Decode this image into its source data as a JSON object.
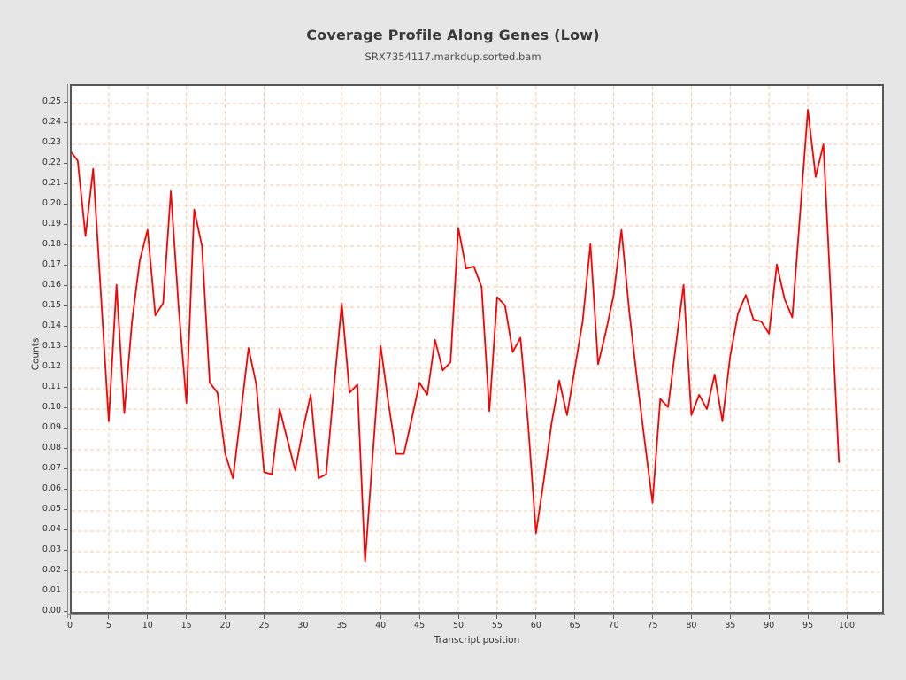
{
  "page": {
    "background": "#e6e6e6"
  },
  "header": {
    "title": "Coverage Profile Along Genes (Low)",
    "subtitle": "SRX7354117.markdup.sorted.bam"
  },
  "chart_data": {
    "type": "line",
    "title": "Coverage Profile Along Genes (Low)",
    "subtitle": "SRX7354117.markdup.sorted.bam",
    "xlabel": "Transcript position",
    "ylabel": "Counts",
    "x_start": 0,
    "x_step": 1,
    "values": [
      0.227,
      0.222,
      0.185,
      0.218,
      0.156,
      0.094,
      0.161,
      0.098,
      0.143,
      0.173,
      0.188,
      0.146,
      0.152,
      0.207,
      0.15,
      0.103,
      0.198,
      0.18,
      0.113,
      0.108,
      0.078,
      0.066,
      0.098,
      0.13,
      0.112,
      0.069,
      0.068,
      0.1,
      0.085,
      0.07,
      0.09,
      0.107,
      0.066,
      0.068,
      0.111,
      0.152,
      0.108,
      0.112,
      0.025,
      0.078,
      0.131,
      0.103,
      0.078,
      0.078,
      0.095,
      0.113,
      0.107,
      0.134,
      0.119,
      0.123,
      0.189,
      0.169,
      0.17,
      0.16,
      0.099,
      0.155,
      0.151,
      0.128,
      0.135,
      0.092,
      0.039,
      0.065,
      0.093,
      0.114,
      0.097,
      0.12,
      0.143,
      0.181,
      0.122,
      0.138,
      0.156,
      0.188,
      0.148,
      0.115,
      0.084,
      0.054,
      0.105,
      0.101,
      0.131,
      0.161,
      0.097,
      0.107,
      0.1,
      0.117,
      0.094,
      0.126,
      0.147,
      0.156,
      0.144,
      0.143,
      0.137,
      0.171,
      0.154,
      0.145,
      0.196,
      0.247,
      0.214,
      0.23,
      0.152,
      0.074
    ],
    "xlim": [
      0,
      104.8
    ],
    "ylim": [
      0,
      0.2596
    ],
    "x_ticks": [
      0,
      5,
      10,
      15,
      20,
      25,
      30,
      35,
      40,
      45,
      50,
      55,
      60,
      65,
      70,
      75,
      80,
      85,
      90,
      95,
      100
    ],
    "x_tick_labels": [
      "0",
      "5",
      "10",
      "15",
      "20",
      "25",
      "30",
      "35",
      "40",
      "45",
      "50",
      "55",
      "60",
      "65",
      "70",
      "75",
      "80",
      "85",
      "90",
      "95",
      "100"
    ],
    "y_ticks": [
      0,
      0.01,
      0.02,
      0.03,
      0.04,
      0.05,
      0.06,
      0.07,
      0.08,
      0.09,
      0.1,
      0.11,
      0.12,
      0.13,
      0.14,
      0.15,
      0.16,
      0.17,
      0.18,
      0.19,
      0.2,
      0.21,
      0.22,
      0.23,
      0.24,
      0.25
    ],
    "y_tick_labels": [
      "0.00",
      "0.01",
      "0.02",
      "0.03",
      "0.04",
      "0.05",
      "0.06",
      "0.07",
      "0.08",
      "0.09",
      "0.10",
      "0.11",
      "0.12",
      "0.13",
      "0.14",
      "0.15",
      "0.16",
      "0.17",
      "0.18",
      "0.19",
      "0.20",
      "0.21",
      "0.22",
      "0.23",
      "0.24",
      "0.25"
    ],
    "grid": "dashed",
    "legend_position": "none",
    "colors": {
      "series": "#ff0000",
      "grid": "#f8c9a4",
      "plot_background": "#ffffff",
      "page_background": "#e6e6e6",
      "frame": "#575757",
      "axis": "#8a8a8a",
      "tick_text": "#333333",
      "title_text": "#3a3a3a"
    }
  }
}
